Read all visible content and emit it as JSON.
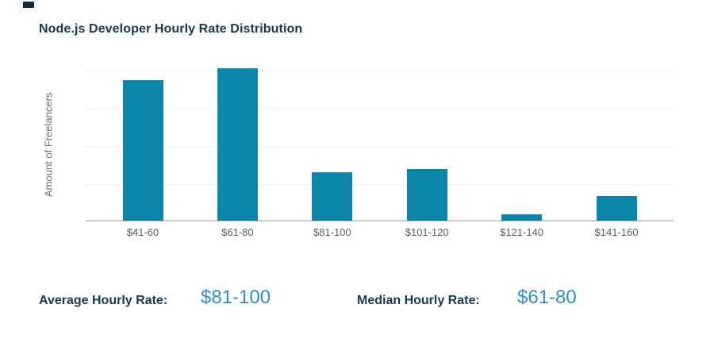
{
  "title": "Node.js Developer Hourly Rate Distribution",
  "chart_data": {
    "type": "bar",
    "title": "Node.js Developer Hourly Rate Distribution",
    "categories": [
      "$41-60",
      "$61-80",
      "$81-100",
      "$101-120",
      "$121-140",
      "$141-160"
    ],
    "values": [
      92,
      100,
      32,
      34,
      4,
      16
    ],
    "xlabel": "",
    "ylabel": "Amount of Freelancers",
    "y_tick_labels": [],
    "ylim": [
      0,
      100
    ],
    "grid": "horizontal",
    "legend": "none",
    "bar_color": "#0b86a8"
  },
  "stats": {
    "average": {
      "label": "Average Hourly Rate:",
      "value": "$81-100"
    },
    "median": {
      "label": "Median Hourly Rate:",
      "value": "$61-80"
    }
  },
  "colors": {
    "bar": "#0b86a8",
    "heading": "#17384f",
    "stat_value": "#2e8fc6",
    "axis_label": "#6e6e6e",
    "tick_label": "#5c5c5c",
    "gridline": "#f0f0f0",
    "axis_line": "#cbcbcb",
    "background": "#ffffff"
  }
}
